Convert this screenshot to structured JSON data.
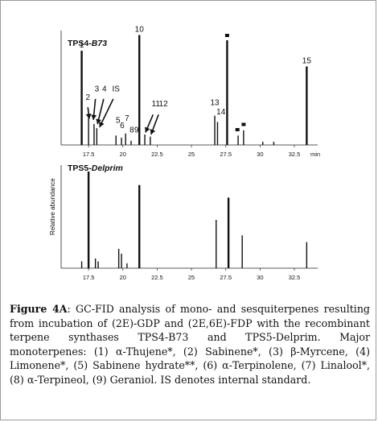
{
  "chart_data": {
    "type": "line",
    "ylabel": "Relative abundance",
    "x_unit": "min",
    "xlim": [
      15.5,
      34.2
    ],
    "ticks": [
      "17.5",
      "20",
      "22.5",
      "25",
      "27.5",
      "30",
      "32.5"
    ],
    "tick_values": [
      17.5,
      20,
      22.5,
      25,
      27.5,
      30,
      32.5
    ],
    "panels": [
      {
        "title_plain": "TPS4-",
        "title_italic": "B73",
        "peaks": [
          {
            "x": 17.0,
            "h": 0.9
          },
          {
            "x": 17.5,
            "h": 0.3
          },
          {
            "x": 17.9,
            "h": 0.2
          },
          {
            "x": 18.1,
            "h": 0.16
          },
          {
            "x": 19.5,
            "h": 0.09
          },
          {
            "x": 19.9,
            "h": 0.07
          },
          {
            "x": 20.2,
            "h": 0.11
          },
          {
            "x": 20.6,
            "h": 0.04
          },
          {
            "x": 21.2,
            "h": 1.05
          },
          {
            "x": 21.6,
            "h": 0.1
          },
          {
            "x": 22.0,
            "h": 0.08
          },
          {
            "x": 26.7,
            "h": 0.28
          },
          {
            "x": 26.9,
            "h": 0.22
          },
          {
            "x": 27.6,
            "h": 1.0
          },
          {
            "x": 28.4,
            "h": 0.09
          },
          {
            "x": 28.8,
            "h": 0.14
          },
          {
            "x": 30.2,
            "h": 0.03
          },
          {
            "x": 31.0,
            "h": 0.03
          },
          {
            "x": 33.4,
            "h": 0.75
          }
        ],
        "labels": [
          {
            "text": "1",
            "x": 17.0,
            "h": 0.9
          },
          {
            "text": "2",
            "x": 17.45,
            "h": 0.4
          },
          {
            "text": "3",
            "x": 18.1,
            "h": 0.48
          },
          {
            "text": "4",
            "x": 18.65,
            "h": 0.48
          },
          {
            "text": "IS",
            "x": 19.5,
            "h": 0.48
          },
          {
            "text": "5",
            "x": 19.65,
            "h": 0.18
          },
          {
            "text": "6",
            "x": 19.95,
            "h": 0.13
          },
          {
            "text": "7",
            "x": 20.3,
            "h": 0.2
          },
          {
            "text": "8",
            "x": 20.65,
            "h": 0.09
          },
          {
            "text": "9",
            "x": 21.0,
            "h": 0.09
          },
          {
            "text": "10",
            "x": 21.2,
            "h": 1.05
          },
          {
            "text": "11",
            "x": 22.4,
            "h": 0.34
          },
          {
            "text": "12",
            "x": 22.95,
            "h": 0.34
          },
          {
            "text": "13",
            "x": 26.7,
            "h": 0.35
          },
          {
            "text": "14",
            "x": 27.15,
            "h": 0.26
          },
          {
            "text": "15",
            "x": 33.4,
            "h": 0.75
          }
        ],
        "arrows": [
          {
            "x": 17.45,
            "h": 0.36,
            "tx": 17.55,
            "th": 0.25
          },
          {
            "x": 18.0,
            "h": 0.44,
            "tx": 17.85,
            "th": 0.24
          },
          {
            "x": 18.6,
            "h": 0.44,
            "tx": 18.15,
            "th": 0.2
          },
          {
            "x": 19.3,
            "h": 0.44,
            "tx": 18.3,
            "th": 0.17
          },
          {
            "x": 22.2,
            "h": 0.29,
            "tx": 21.65,
            "th": 0.12
          },
          {
            "x": 22.6,
            "h": 0.29,
            "tx": 22.05,
            "th": 0.1
          }
        ],
        "markers": [
          {
            "x": 27.6,
            "h": 1.0
          },
          {
            "x": 28.35,
            "h": 0.1
          },
          {
            "x": 28.8,
            "h": 0.15
          }
        ]
      },
      {
        "title_plain": "TPS5-",
        "title_italic": "Delprim",
        "peaks": [
          {
            "x": 17.0,
            "h": 0.07
          },
          {
            "x": 17.5,
            "h": 1.0
          },
          {
            "x": 18.0,
            "h": 0.1
          },
          {
            "x": 18.2,
            "h": 0.07
          },
          {
            "x": 19.7,
            "h": 0.2
          },
          {
            "x": 19.9,
            "h": 0.15
          },
          {
            "x": 20.3,
            "h": 0.05
          },
          {
            "x": 21.2,
            "h": 0.86
          },
          {
            "x": 26.8,
            "h": 0.5
          },
          {
            "x": 27.7,
            "h": 0.73
          },
          {
            "x": 28.7,
            "h": 0.34
          },
          {
            "x": 33.4,
            "h": 0.27
          }
        ]
      }
    ]
  },
  "caption": {
    "label": "Figure 4A",
    "text": ": GC-FID analysis of mono- and sesquiterpenes resulting from incubation of (2E)-GDP and (2E,6E)-FDP with the recombinant terpene synthases TPS4-B73 and TPS5-Delprim. Major monoterpenes: (1) α-Thujene*, (2) Sabinene*, (3) β-Myrcene, (4) Limonene*, (5) Sabinene hydrate**, (6) α-Terpinolene, (7) Linalool*, (8) α-Terpineol, (9) Geraniol. IS denotes internal standard."
  }
}
